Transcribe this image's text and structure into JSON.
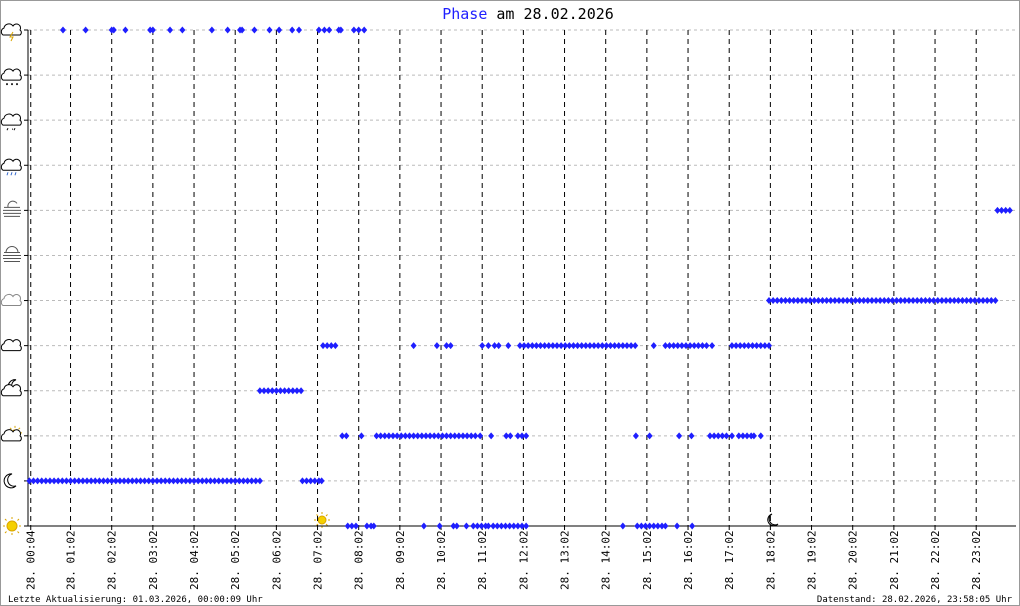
{
  "chart_data": {
    "type": "scatter",
    "title": "Phase",
    "subtitle": "am 28.02.2026",
    "footer_left": "Letzte Aktualisierung: 01.03.2026, 00:00:09 Uhr",
    "footer_right": "Datenstand: 28.02.2026, 23:58:05 Uhr",
    "xlim": [
      0,
      1440
    ],
    "ylim": [
      0,
      11
    ],
    "xticks": [
      {
        "value": 4,
        "label": "28. 00:04"
      },
      {
        "value": 62,
        "label": "28. 01:02"
      },
      {
        "value": 122,
        "label": "28. 02:02"
      },
      {
        "value": 182,
        "label": "28. 03:02"
      },
      {
        "value": 242,
        "label": "28. 04:02"
      },
      {
        "value": 302,
        "label": "28. 05:02"
      },
      {
        "value": 362,
        "label": "28. 06:02"
      },
      {
        "value": 422,
        "label": "28. 07:02"
      },
      {
        "value": 482,
        "label": "28. 08:02"
      },
      {
        "value": 542,
        "label": "28. 09:02"
      },
      {
        "value": 602,
        "label": "28. 10:02"
      },
      {
        "value": 662,
        "label": "28. 11:02"
      },
      {
        "value": 722,
        "label": "28. 12:02"
      },
      {
        "value": 782,
        "label": "28. 13:02"
      },
      {
        "value": 842,
        "label": "28. 14:02"
      },
      {
        "value": 902,
        "label": "28. 15:02"
      },
      {
        "value": 962,
        "label": "28. 16:02"
      },
      {
        "value": 1022,
        "label": "28. 17:02"
      },
      {
        "value": 1082,
        "label": "28. 18:02"
      },
      {
        "value": 1142,
        "label": "28. 19:02"
      },
      {
        "value": 1202,
        "label": "28. 20:02"
      },
      {
        "value": 1262,
        "label": "28. 21:02"
      },
      {
        "value": 1322,
        "label": "28. 22:02"
      },
      {
        "value": 1382,
        "label": "28. 23:02"
      }
    ],
    "yticks": [
      0,
      1,
      2,
      3,
      4,
      5,
      6,
      7,
      8,
      9,
      10,
      11
    ],
    "grid": true,
    "series": [
      {
        "color": "#1f1fff",
        "points": [
          [
            2,
            1
          ],
          [
            8,
            1
          ],
          [
            14,
            1
          ],
          [
            20,
            1
          ],
          [
            26,
            1
          ],
          [
            32,
            1
          ],
          [
            38,
            1
          ],
          [
            44,
            1
          ],
          [
            50,
            1
          ],
          [
            56,
            1
          ],
          [
            62,
            1
          ],
          [
            68,
            1
          ],
          [
            74,
            1
          ],
          [
            80,
            1
          ],
          [
            86,
            1
          ],
          [
            92,
            1
          ],
          [
            98,
            1
          ],
          [
            104,
            1
          ],
          [
            110,
            1
          ],
          [
            116,
            1
          ],
          [
            122,
            1
          ],
          [
            128,
            1
          ],
          [
            134,
            1
          ],
          [
            140,
            1
          ],
          [
            146,
            1
          ],
          [
            152,
            1
          ],
          [
            158,
            1
          ],
          [
            164,
            1
          ],
          [
            170,
            1
          ],
          [
            176,
            1
          ],
          [
            182,
            1
          ],
          [
            188,
            1
          ],
          [
            194,
            1
          ],
          [
            200,
            1
          ],
          [
            206,
            1
          ],
          [
            212,
            1
          ],
          [
            218,
            1
          ],
          [
            224,
            1
          ],
          [
            230,
            1
          ],
          [
            236,
            1
          ],
          [
            242,
            1
          ],
          [
            248,
            1
          ],
          [
            254,
            1
          ],
          [
            260,
            1
          ],
          [
            266,
            1
          ],
          [
            272,
            1
          ],
          [
            278,
            1
          ],
          [
            284,
            1
          ],
          [
            290,
            1
          ],
          [
            296,
            1
          ],
          [
            302,
            1
          ],
          [
            308,
            1
          ],
          [
            314,
            1
          ],
          [
            320,
            1
          ],
          [
            326,
            1
          ],
          [
            332,
            1
          ],
          [
            338,
            1
          ],
          [
            51,
            11
          ],
          [
            84,
            11
          ],
          [
            122,
            11
          ],
          [
            125,
            11
          ],
          [
            142,
            11
          ],
          [
            178,
            11
          ],
          [
            182,
            11
          ],
          [
            207,
            11
          ],
          [
            225,
            11
          ],
          [
            268,
            11
          ],
          [
            291,
            11
          ],
          [
            309,
            11
          ],
          [
            312,
            11
          ],
          [
            330,
            11
          ],
          [
            352,
            11
          ],
          [
            366,
            11
          ],
          [
            385,
            11
          ],
          [
            395,
            11
          ],
          [
            424,
            11
          ],
          [
            432,
            11
          ],
          [
            439,
            11
          ],
          [
            453,
            11
          ],
          [
            456,
            11
          ],
          [
            475,
            11
          ],
          [
            482,
            11
          ],
          [
            490,
            11
          ],
          [
            338,
            3
          ],
          [
            344,
            3
          ],
          [
            350,
            3
          ],
          [
            356,
            3
          ],
          [
            362,
            3
          ],
          [
            368,
            3
          ],
          [
            374,
            3
          ],
          [
            380,
            3
          ],
          [
            386,
            3
          ],
          [
            392,
            3
          ],
          [
            398,
            3
          ],
          [
            400,
            1
          ],
          [
            406,
            1
          ],
          [
            412,
            1
          ],
          [
            418,
            1
          ],
          [
            424,
            1
          ],
          [
            428,
            1
          ],
          [
            430,
            4
          ],
          [
            436,
            4
          ],
          [
            442,
            4
          ],
          [
            448,
            4
          ],
          [
            458,
            2
          ],
          [
            464,
            2
          ],
          [
            486,
            2
          ],
          [
            508,
            2
          ],
          [
            514,
            2
          ],
          [
            520,
            2
          ],
          [
            526,
            2
          ],
          [
            532,
            2
          ],
          [
            538,
            2
          ],
          [
            544,
            2
          ],
          [
            550,
            2
          ],
          [
            556,
            2
          ],
          [
            562,
            2
          ],
          [
            568,
            2
          ],
          [
            574,
            2
          ],
          [
            580,
            2
          ],
          [
            586,
            2
          ],
          [
            592,
            2
          ],
          [
            598,
            2
          ],
          [
            604,
            2
          ],
          [
            610,
            2
          ],
          [
            616,
            2
          ],
          [
            622,
            2
          ],
          [
            628,
            2
          ],
          [
            634,
            2
          ],
          [
            640,
            2
          ],
          [
            646,
            2
          ],
          [
            652,
            2
          ],
          [
            466,
            0
          ],
          [
            472,
            0
          ],
          [
            478,
            0
          ],
          [
            494,
            0
          ],
          [
            500,
            0
          ],
          [
            504,
            0
          ],
          [
            562,
            4
          ],
          [
            596,
            4
          ],
          [
            610,
            4
          ],
          [
            616,
            4
          ],
          [
            577,
            0
          ],
          [
            600,
            0
          ],
          [
            620,
            0
          ],
          [
            625,
            0
          ],
          [
            639,
            0
          ],
          [
            649,
            0
          ],
          [
            655,
            0
          ],
          [
            661,
            0
          ],
          [
            667,
            0
          ],
          [
            671,
            0
          ],
          [
            678,
            0
          ],
          [
            684,
            0
          ],
          [
            690,
            0
          ],
          [
            696,
            0
          ],
          [
            702,
            0
          ],
          [
            708,
            0
          ],
          [
            714,
            0
          ],
          [
            720,
            0
          ],
          [
            726,
            0
          ],
          [
            659,
            2
          ],
          [
            675,
            2
          ],
          [
            697,
            2
          ],
          [
            703,
            2
          ],
          [
            714,
            2
          ],
          [
            720,
            2
          ],
          [
            726,
            2
          ],
          [
            662,
            4
          ],
          [
            671,
            4
          ],
          [
            680,
            4
          ],
          [
            686,
            4
          ],
          [
            700,
            4
          ],
          [
            717,
            4
          ],
          [
            723,
            4
          ],
          [
            729,
            4
          ],
          [
            735,
            4
          ],
          [
            741,
            4
          ],
          [
            747,
            4
          ],
          [
            753,
            4
          ],
          [
            759,
            4
          ],
          [
            765,
            4
          ],
          [
            771,
            4
          ],
          [
            777,
            4
          ],
          [
            783,
            4
          ],
          [
            789,
            4
          ],
          [
            795,
            4
          ],
          [
            801,
            4
          ],
          [
            807,
            4
          ],
          [
            813,
            4
          ],
          [
            819,
            4
          ],
          [
            825,
            4
          ],
          [
            831,
            4
          ],
          [
            837,
            4
          ],
          [
            843,
            4
          ],
          [
            849,
            4
          ],
          [
            855,
            4
          ],
          [
            861,
            4
          ],
          [
            867,
            4
          ],
          [
            873,
            4
          ],
          [
            879,
            4
          ],
          [
            885,
            4
          ],
          [
            867,
            0
          ],
          [
            888,
            0
          ],
          [
            894,
            0
          ],
          [
            900,
            0
          ],
          [
            906,
            0
          ],
          [
            912,
            0
          ],
          [
            918,
            0
          ],
          [
            924,
            0
          ],
          [
            929,
            0
          ],
          [
            946,
            0
          ],
          [
            968,
            0
          ],
          [
            886,
            2
          ],
          [
            906,
            2
          ],
          [
            949,
            2
          ],
          [
            967,
            2
          ],
          [
            994,
            2
          ],
          [
            1000,
            2
          ],
          [
            1006,
            2
          ],
          [
            1012,
            2
          ],
          [
            1018,
            2
          ],
          [
            1026,
            2
          ],
          [
            1036,
            2
          ],
          [
            1042,
            2
          ],
          [
            1048,
            2
          ],
          [
            1054,
            2
          ],
          [
            1058,
            2
          ],
          [
            1068,
            2
          ],
          [
            912,
            4
          ],
          [
            929,
            4
          ],
          [
            935,
            4
          ],
          [
            941,
            4
          ],
          [
            947,
            4
          ],
          [
            953,
            4
          ],
          [
            959,
            4
          ],
          [
            965,
            4
          ],
          [
            971,
            4
          ],
          [
            977,
            4
          ],
          [
            983,
            4
          ],
          [
            989,
            4
          ],
          [
            997,
            4
          ],
          [
            1026,
            4
          ],
          [
            1032,
            4
          ],
          [
            1038,
            4
          ],
          [
            1044,
            4
          ],
          [
            1050,
            4
          ],
          [
            1056,
            4
          ],
          [
            1062,
            4
          ],
          [
            1068,
            4
          ],
          [
            1074,
            4
          ],
          [
            1080,
            4
          ],
          [
            1080,
            5
          ],
          [
            1086,
            5
          ],
          [
            1092,
            5
          ],
          [
            1098,
            5
          ],
          [
            1104,
            5
          ],
          [
            1110,
            5
          ],
          [
            1116,
            5
          ],
          [
            1122,
            5
          ],
          [
            1128,
            5
          ],
          [
            1134,
            5
          ],
          [
            1140,
            5
          ],
          [
            1146,
            5
          ],
          [
            1152,
            5
          ],
          [
            1158,
            5
          ],
          [
            1164,
            5
          ],
          [
            1170,
            5
          ],
          [
            1176,
            5
          ],
          [
            1182,
            5
          ],
          [
            1188,
            5
          ],
          [
            1194,
            5
          ],
          [
            1200,
            5
          ],
          [
            1206,
            5
          ],
          [
            1212,
            5
          ],
          [
            1218,
            5
          ],
          [
            1224,
            5
          ],
          [
            1230,
            5
          ],
          [
            1236,
            5
          ],
          [
            1242,
            5
          ],
          [
            1248,
            5
          ],
          [
            1254,
            5
          ],
          [
            1260,
            5
          ],
          [
            1266,
            5
          ],
          [
            1272,
            5
          ],
          [
            1278,
            5
          ],
          [
            1284,
            5
          ],
          [
            1290,
            5
          ],
          [
            1296,
            5
          ],
          [
            1302,
            5
          ],
          [
            1308,
            5
          ],
          [
            1314,
            5
          ],
          [
            1320,
            5
          ],
          [
            1326,
            5
          ],
          [
            1332,
            5
          ],
          [
            1338,
            5
          ],
          [
            1344,
            5
          ],
          [
            1350,
            5
          ],
          [
            1356,
            5
          ],
          [
            1362,
            5
          ],
          [
            1368,
            5
          ],
          [
            1374,
            5
          ],
          [
            1380,
            5
          ],
          [
            1386,
            5
          ],
          [
            1392,
            5
          ],
          [
            1398,
            5
          ],
          [
            1404,
            5
          ],
          [
            1410,
            5
          ],
          [
            1413,
            7
          ],
          [
            1419,
            7
          ],
          [
            1425,
            7
          ],
          [
            1431,
            7
          ]
        ]
      }
    ]
  }
}
